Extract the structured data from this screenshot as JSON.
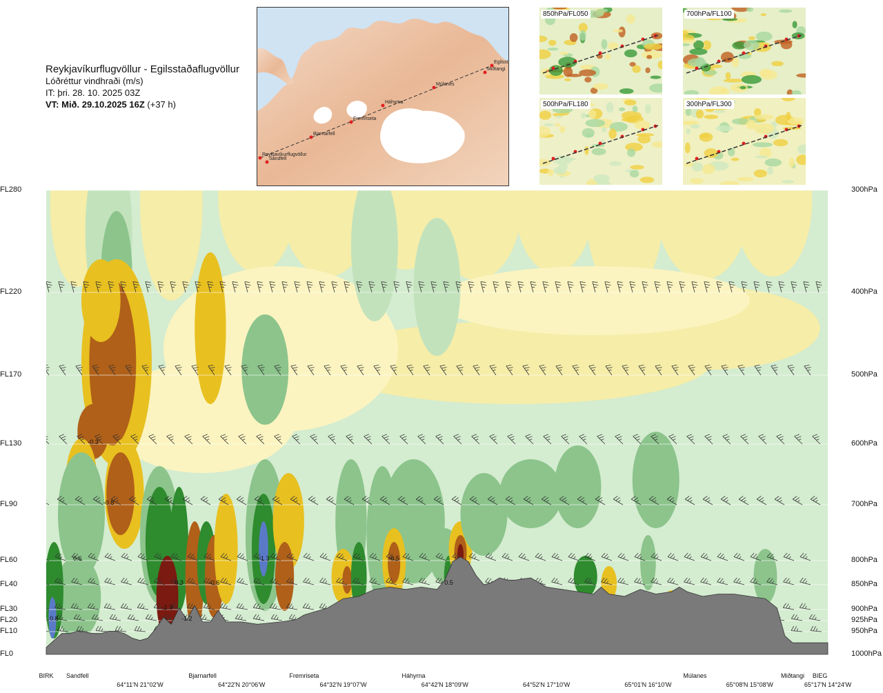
{
  "header": {
    "route": "Reykjavíkurflugvöllur - Egilsstaðaflugvöllur",
    "variable": "Lóðréttur vindhraði (m/s)",
    "it": "IT: þri. 28. 10. 2025 03Z",
    "vt_bold": "VT: Mið. 29.10.2025 16Z",
    "vt_lead": " (+37 h)"
  },
  "overview_map": {
    "places": [
      "Reykjavíkurflugvöllur",
      "Sandfell",
      "Bjarnarfell",
      "Fremriseta",
      "Háhyrna",
      "Múlanes",
      "Miðtangi",
      "Egilsstaðaflugvöllur"
    ],
    "place_labels": [
      "Reykjavíkurflugvöllur",
      "Sandfell",
      "Bjarnarfell",
      "Fremriseta",
      "Háhyrna",
      "Múlanes",
      "Miðtangi",
      "Egilssta"
    ]
  },
  "thumbnails": [
    {
      "label": "850hPa/FL050"
    },
    {
      "label": "700hPa/FL100"
    },
    {
      "label": "500hPa/FL180"
    },
    {
      "label": "300hPa/FL300"
    }
  ],
  "colors": {
    "terrain": "#7a7a7a",
    "up_strong": "#2e8b2e",
    "up_mid": "#8cc48c",
    "up_weak": "#d4ecd0",
    "down_weak": "#f5eda8",
    "down_mid": "#e8c020",
    "down_strong": "#b06018",
    "down_extreme": "#7a1a10",
    "up_extreme": "#5a7ac8",
    "route": "#333333",
    "waypoint": "#e02020"
  },
  "chart_data": {
    "type": "heatmap",
    "variable": "Lóðréttur vindhraði (m/s)",
    "left_axis_levels": [
      "FL280",
      "FL220",
      "FL170",
      "FL130",
      "FL90",
      "FL60",
      "FL40",
      "FL30",
      "FL20",
      "FL10",
      "FL0"
    ],
    "right_axis_levels": [
      "300hPa",
      "400hPa",
      "500hPa",
      "600hPa",
      "700hPa",
      "800hPa",
      "850hPa",
      "900hPa",
      "925hPa",
      "950hPa",
      "1000hPa"
    ],
    "pressure_hpa": [
      300,
      400,
      500,
      600,
      700,
      800,
      850,
      900,
      925,
      950,
      1000
    ],
    "x_sites": [
      "BIRK",
      "Sandfell",
      "Bjarnarfell",
      "Fremriseta",
      "Háhyrna",
      "Múlanes",
      "Miðtangi",
      "BIEG"
    ],
    "x_site_fraction": [
      0.0,
      0.04,
      0.2,
      0.33,
      0.47,
      0.83,
      0.955,
      0.99
    ],
    "x_coords": [
      "64°11'N 21°02'W",
      "64°22'N 20°06'W",
      "64°32'N 19°07'W",
      "64°42'N 18°09'W",
      "64°52'N 17°10'W",
      "65°01'N 16°10'W",
      "65°08'N 15°08'W",
      "65°17'N 14°24'W"
    ],
    "x_coord_fraction": [
      0.12,
      0.25,
      0.38,
      0.51,
      0.64,
      0.77,
      0.9,
      1.0
    ],
    "value_labels": [
      {
        "text": "-0.3",
        "frac": 0.06,
        "hpa": 600
      },
      {
        "text": "-0.8",
        "frac": 0.08,
        "hpa": 700
      },
      {
        "text": "0.6",
        "frac": 0.04,
        "hpa": 800
      },
      {
        "text": "0.8",
        "frac": 0.01,
        "hpa": 925
      },
      {
        "text": "1.3",
        "frac": 0.28,
        "hpa": 800
      },
      {
        "text": "0.3",
        "frac": 0.17,
        "hpa": 850
      },
      {
        "text": "-0.6",
        "frac": 0.215,
        "hpa": 850
      },
      {
        "text": "-1.3",
        "frac": 0.155,
        "hpa": 900
      },
      {
        "text": "-1.2",
        "frac": 0.18,
        "hpa": 925
      },
      {
        "text": "-0.5",
        "frac": 0.445,
        "hpa": 800
      },
      {
        "text": "0.5",
        "frac": 0.515,
        "hpa": 850
      }
    ]
  }
}
